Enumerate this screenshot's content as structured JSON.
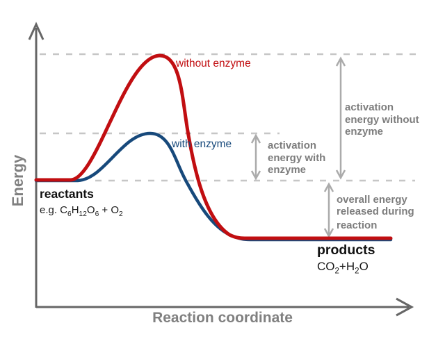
{
  "axes": {
    "y_label": "Energy",
    "x_label": "Reaction coordinate"
  },
  "curves": {
    "without_enzyme": {
      "label": "without enzyme",
      "color": "#c10e11"
    },
    "with_enzyme": {
      "label": "with enzyme",
      "color": "#17497b"
    }
  },
  "annotations": {
    "activation_with": {
      "line1": "activation",
      "line2": "energy with",
      "line3": "enzyme"
    },
    "activation_without": {
      "line1": "activation",
      "line2": "energy without",
      "line3": "enzyme"
    },
    "overall_release": {
      "line1": "overall energy",
      "line2": "released during",
      "line3": "reaction"
    }
  },
  "states": {
    "reactants": {
      "label": "reactants",
      "formula": [
        {
          "t": "e.g. C"
        },
        {
          "s": "6"
        },
        {
          "t": "H"
        },
        {
          "s": "12"
        },
        {
          "t": "O"
        },
        {
          "s": "6"
        },
        {
          "t": " + O"
        },
        {
          "s": "2"
        }
      ]
    },
    "products": {
      "label": "products",
      "formula": [
        {
          "t": "CO"
        },
        {
          "s": "2"
        },
        {
          "t": "+H"
        },
        {
          "s": "2"
        },
        {
          "t": "O"
        }
      ]
    }
  },
  "colors": {
    "axis": "#666666",
    "dashed_line": "#c6c6c6",
    "arrow": "#ababab",
    "annotation_text": "#7d7d7d",
    "state_text": "#111111",
    "curve_without_enzyme": "#c10e11",
    "curve_with_enzyme": "#17497b"
  }
}
